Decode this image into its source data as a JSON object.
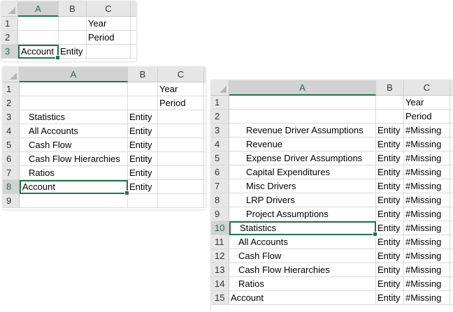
{
  "accent_color": "#217346",
  "sheets": [
    {
      "columns": [
        "A",
        "B",
        "C"
      ],
      "selected_column": "A",
      "active_row": "3",
      "rows": [
        {
          "num": "1",
          "a": "",
          "indent": 0,
          "b": "",
          "c": "Year"
        },
        {
          "num": "2",
          "a": "",
          "indent": 0,
          "b": "",
          "c": "Period"
        },
        {
          "num": "3",
          "a": "Account",
          "indent": 0,
          "b": "Entity",
          "c": ""
        }
      ]
    },
    {
      "columns": [
        "A",
        "B",
        "C"
      ],
      "selected_column": "A",
      "active_row": "8",
      "rows": [
        {
          "num": "1",
          "a": "",
          "indent": 0,
          "b": "",
          "c": "Year"
        },
        {
          "num": "2",
          "a": "",
          "indent": 0,
          "b": "",
          "c": "Period"
        },
        {
          "num": "3",
          "a": "Statistics",
          "indent": 1,
          "b": "Entity",
          "c": ""
        },
        {
          "num": "4",
          "a": "All Accounts",
          "indent": 1,
          "b": "Entity",
          "c": ""
        },
        {
          "num": "5",
          "a": "Cash Flow",
          "indent": 1,
          "b": "Entity",
          "c": ""
        },
        {
          "num": "6",
          "a": "Cash Flow Hierarchies",
          "indent": 1,
          "b": "Entity",
          "c": ""
        },
        {
          "num": "7",
          "a": "Ratios",
          "indent": 1,
          "b": "Entity",
          "c": ""
        },
        {
          "num": "8",
          "a": "Account",
          "indent": 0,
          "b": "Entity",
          "c": ""
        },
        {
          "num": "9",
          "a": "",
          "indent": 0,
          "b": "",
          "c": ""
        }
      ]
    },
    {
      "columns": [
        "A",
        "B",
        "C"
      ],
      "selected_column": "A",
      "active_row": "10",
      "rows": [
        {
          "num": "1",
          "a": "",
          "indent": 0,
          "b": "",
          "c": "Year"
        },
        {
          "num": "2",
          "a": "",
          "indent": 0,
          "b": "",
          "c": "Period"
        },
        {
          "num": "3",
          "a": "Revenue Driver Assumptions",
          "indent": 2,
          "b": "Entity",
          "c": "#Missing"
        },
        {
          "num": "4",
          "a": "Revenue",
          "indent": 2,
          "b": "Entity",
          "c": "#Missing"
        },
        {
          "num": "5",
          "a": "Expense Driver Assumptions",
          "indent": 2,
          "b": "Entity",
          "c": "#Missing"
        },
        {
          "num": "6",
          "a": "Capital Expenditures",
          "indent": 2,
          "b": "Entity",
          "c": "#Missing"
        },
        {
          "num": "7",
          "a": "Misc Drivers",
          "indent": 2,
          "b": "Entity",
          "c": "#Missing"
        },
        {
          "num": "8",
          "a": "LRP Drivers",
          "indent": 2,
          "b": "Entity",
          "c": "#Missing"
        },
        {
          "num": "9",
          "a": "Project Assumptions",
          "indent": 2,
          "b": "Entity",
          "c": "#Missing"
        },
        {
          "num": "10",
          "a": "Statistics",
          "indent": 1,
          "b": "Entity",
          "c": "#Missing"
        },
        {
          "num": "11",
          "a": "All Accounts",
          "indent": 1,
          "b": "Entity",
          "c": "#Missing"
        },
        {
          "num": "12",
          "a": "Cash Flow",
          "indent": 1,
          "b": "Entity",
          "c": "#Missing"
        },
        {
          "num": "13",
          "a": "Cash Flow Hierarchies",
          "indent": 1,
          "b": "Entity",
          "c": "#Missing"
        },
        {
          "num": "14",
          "a": "Ratios",
          "indent": 1,
          "b": "Entity",
          "c": "#Missing"
        },
        {
          "num": "15",
          "a": "Account",
          "indent": 0,
          "b": "Entity",
          "c": "#Missing"
        }
      ]
    }
  ]
}
